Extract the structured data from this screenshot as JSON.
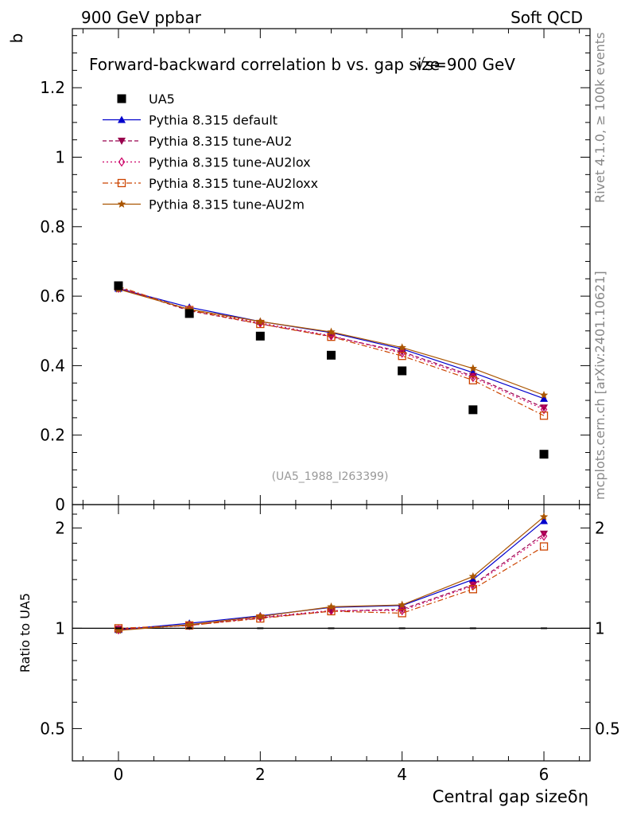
{
  "header": {
    "left": "900 GeV ppbar",
    "right": "Soft QCD"
  },
  "side_labels": {
    "rivet": "Rivet 4.1.0, ≥ 100k events",
    "mcplots": "mcplots.cern.ch [arXiv:2401.10621]"
  },
  "chart_data": {
    "type": "scatter",
    "title": "Forward-backward correlation b  vs. gap size",
    "title_energy": "√s=900 GeV",
    "xlabel": "Central gap sizeδη",
    "ylabel": "b",
    "ratio_ylabel": "Ratio to UA5",
    "analysis_tag": "(UA5_1988_I263399)",
    "xlim": [
      -0.65,
      6.65
    ],
    "ylim": [
      0,
      1.37
    ],
    "ratio_ylim": [
      0.4,
      2.35
    ],
    "x_ticks": [
      "0",
      "2",
      "4",
      "6"
    ],
    "y_ticks": [
      "0",
      "0.2",
      "0.4",
      "0.6",
      "0.8",
      "1",
      "1.2"
    ],
    "ratio_ticks": [
      "0.5",
      "1",
      "2"
    ],
    "x": [
      0,
      1,
      2,
      3,
      4,
      5,
      6
    ],
    "reference": {
      "name": "UA5",
      "color": "#000000",
      "values": [
        0.63,
        0.55,
        0.485,
        0.43,
        0.385,
        0.273,
        0.145
      ]
    },
    "series": [
      {
        "name": "Pythia 8.315 default",
        "color": "#0000cc",
        "marker": "triangle-up",
        "dash": "solid",
        "values": [
          0.622,
          0.568,
          0.527,
          0.495,
          0.448,
          0.38,
          0.305
        ],
        "ratio": [
          0.99,
          1.035,
          1.09,
          1.155,
          1.17,
          1.4,
          2.1
        ]
      },
      {
        "name": "Pythia 8.315 tune-AU2",
        "color": "#99004d",
        "marker": "triangle-down",
        "dash": "dashed",
        "values": [
          0.625,
          0.558,
          0.52,
          0.484,
          0.44,
          0.37,
          0.279
        ],
        "ratio": [
          0.995,
          1.02,
          1.075,
          1.125,
          1.14,
          1.35,
          1.92
        ]
      },
      {
        "name": "Pythia 8.315 tune-AU2lox",
        "color": "#cc0066",
        "marker": "diamond",
        "dash": "dotted",
        "values": [
          0.623,
          0.562,
          0.523,
          0.486,
          0.436,
          0.366,
          0.274
        ],
        "ratio": [
          0.99,
          1.02,
          1.08,
          1.13,
          1.13,
          1.34,
          1.89
        ]
      },
      {
        "name": "Pythia 8.315 tune-AU2loxx",
        "color": "#cc4400",
        "marker": "square-open",
        "dash": "dashdot",
        "values": [
          0.628,
          0.56,
          0.52,
          0.483,
          0.428,
          0.358,
          0.256
        ],
        "ratio": [
          1.0,
          1.02,
          1.07,
          1.125,
          1.11,
          1.31,
          1.76
        ]
      },
      {
        "name": "Pythia 8.315 tune-AU2m",
        "color": "#aa5500",
        "marker": "star",
        "dash": "solid",
        "values": [
          0.62,
          0.562,
          0.527,
          0.497,
          0.452,
          0.392,
          0.315
        ],
        "ratio": [
          0.985,
          1.025,
          1.085,
          1.16,
          1.175,
          1.43,
          2.16
        ]
      }
    ]
  }
}
